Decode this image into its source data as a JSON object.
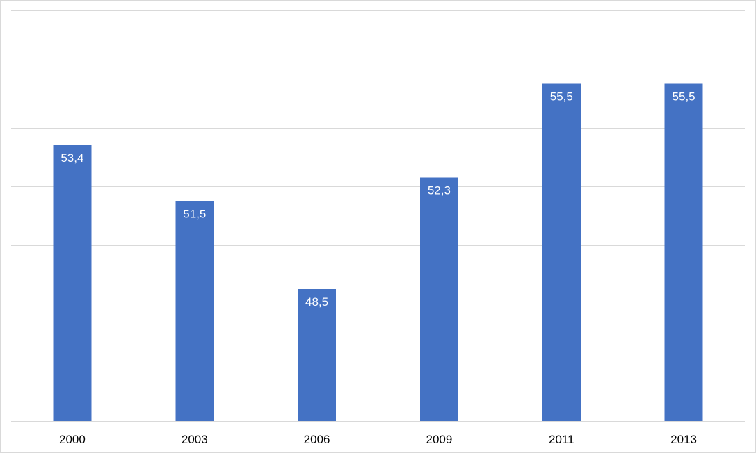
{
  "chart_data": {
    "type": "bar",
    "title": "",
    "xlabel": "",
    "ylabel": "",
    "categories": [
      "2000",
      "2003",
      "2006",
      "2009",
      "2011",
      "2013"
    ],
    "values": [
      53.4,
      51.5,
      48.5,
      52.3,
      55.5,
      55.5
    ],
    "data_labels": [
      "53,4",
      "51,5",
      "48,5",
      "52,3",
      "55,5",
      "55,5"
    ],
    "ylim": [
      44,
      58
    ],
    "y_gridlines": [
      44,
      46,
      48,
      50,
      52,
      54,
      56,
      58
    ],
    "y_tick_labels_shown": false,
    "grid": true,
    "legend": "none",
    "bar_color": "#4472c4",
    "gridline_color": "#d9d9d9",
    "label_color": "#ffffff"
  }
}
